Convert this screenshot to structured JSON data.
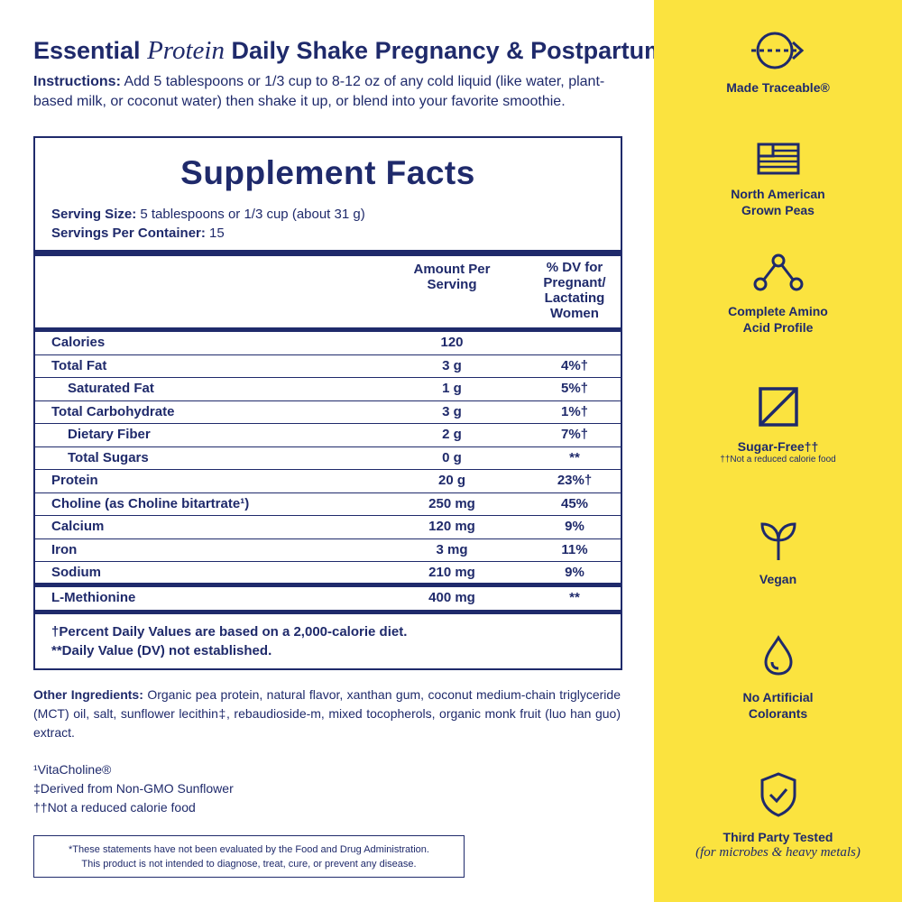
{
  "header": {
    "title_prefix": "Essential ",
    "title_italic": "Protein",
    "title_suffix": " Daily Shake Pregnancy & Postpartum",
    "instructions_label": "Instructions:",
    "instructions_text": " Add 5 tablespoons or 1/3 cup to 8-12 oz of any cold liquid (like water, plant-based milk, or coconut water) then shake it up, or blend into your favorite smoothie."
  },
  "facts": {
    "title": "Supplement Facts",
    "serving_size_label": "Serving Size:",
    "serving_size_value": " 5 tablespoons or 1/3 cup (about 31 g)",
    "servings_label": "Servings Per Container:",
    "servings_value": " 15",
    "col_amount": "Amount Per Serving",
    "col_dv": "% DV for Pregnant/ Lactating Women",
    "rows": [
      {
        "name": "Calories",
        "amount": "120",
        "dv": ""
      },
      {
        "name": "Total Fat",
        "amount": "3 g",
        "dv": "4%†"
      },
      {
        "name": "Saturated Fat",
        "amount": "1 g",
        "dv": "5%†"
      },
      {
        "name": "Total Carbohydrate",
        "amount": "3 g",
        "dv": "1%†"
      },
      {
        "name": "Dietary Fiber",
        "amount": "2 g",
        "dv": "7%†"
      },
      {
        "name": "Total Sugars",
        "amount": "0 g",
        "dv": "**"
      },
      {
        "name": "Protein",
        "amount": "20 g",
        "dv": "23%†"
      },
      {
        "name": "Choline (as Choline bitartrate¹)",
        "amount": "250 mg",
        "dv": "45%"
      },
      {
        "name": "Calcium",
        "amount": "120 mg",
        "dv": "9%"
      },
      {
        "name": "Iron",
        "amount": "3 mg",
        "dv": "11%"
      },
      {
        "name": "Sodium",
        "amount": "210 mg",
        "dv": "9%"
      }
    ],
    "methionine": {
      "name": "L-Methionine",
      "amount": "400 mg",
      "dv": "**"
    },
    "footnote1": "†Percent Daily Values are based on a 2,000-calorie diet.",
    "footnote2": "**Daily Value (DV) not established."
  },
  "other": {
    "label": "Other Ingredients:",
    "text": " Organic pea protein, natural flavor, xanthan gum, coconut medium-chain triglyceride (MCT) oil, salt, sunflower lecithin‡, rebaudioside-m, mixed tocopherols, organic monk fruit (luo han guo) extract."
  },
  "notes": [
    "¹VitaCholine®",
    "‡Derived from Non-GMO Sunflower",
    "††Not a reduced calorie food"
  ],
  "disclaimer": {
    "line1": "*These statements have not been evaluated by the Food and Drug Administration.",
    "line2": "This product is not intended to diagnose, treat, cure, or prevent any disease."
  },
  "features": [
    {
      "icon": "traceable-arrow-icon",
      "line1": "Made Traceable®",
      "line2": ""
    },
    {
      "icon": "flag-icon",
      "line1": "North American",
      "line2": "Grown Peas"
    },
    {
      "icon": "molecule-icon",
      "line1": "Complete Amino",
      "line2": "Acid Profile"
    },
    {
      "icon": "sugar-free-icon",
      "line1": "Sugar-Free††",
      "sub": "††Not a reduced calorie food"
    },
    {
      "icon": "sprout-icon",
      "line1": "Vegan",
      "line2": ""
    },
    {
      "icon": "droplet-icon",
      "line1": "No Artificial",
      "line2": "Colorants"
    },
    {
      "icon": "shield-check-icon",
      "line1": "Third Party Tested",
      "sub": "(for microbes & heavy metals)"
    }
  ],
  "colors": {
    "navy": "#1f2a6b",
    "yellow": "#fbe33f"
  }
}
